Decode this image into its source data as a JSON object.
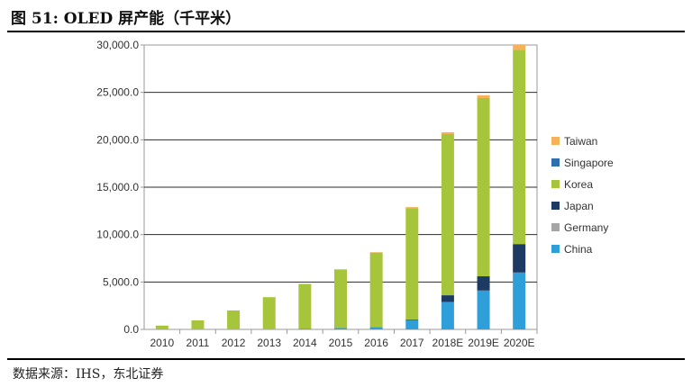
{
  "header": {
    "title": "图 51: OLED 屏产能（千平米）"
  },
  "footer": {
    "source": "数据来源：IHS，东北证券"
  },
  "colors": {
    "China": "#2e9fd8",
    "Germany": "#a6a6a6",
    "Japan": "#1d3a63",
    "Korea": "#a7c53a",
    "Singapore": "#2f6fb0",
    "Taiwan": "#f5b25a"
  },
  "chart_data": {
    "type": "bar",
    "stacked": true,
    "categories": [
      "2010",
      "2011",
      "2012",
      "2013",
      "2014",
      "2015",
      "2016",
      "2017",
      "2018E",
      "2019E",
      "2020E"
    ],
    "ylim": [
      0,
      30000
    ],
    "yticks": [
      "0.0",
      "5,000.0",
      "10,000.0",
      "15,000.0",
      "20,000.0",
      "25,000.0",
      "30,000.0"
    ],
    "grid": true,
    "legend_position": "right",
    "legend_order": [
      "Taiwan",
      "Singapore",
      "Korea",
      "Japan",
      "Germany",
      "China"
    ],
    "series": [
      {
        "name": "China",
        "values": [
          0,
          0,
          0,
          0,
          50,
          150,
          250,
          1000,
          2900,
          4100,
          6000
        ]
      },
      {
        "name": "Germany",
        "values": [
          0,
          0,
          0,
          0,
          0,
          0,
          0,
          0,
          0,
          0,
          0
        ]
      },
      {
        "name": "Japan",
        "values": [
          0,
          0,
          0,
          0,
          0,
          0,
          0,
          50,
          700,
          1500,
          3000
        ]
      },
      {
        "name": "Korea",
        "values": [
          400,
          950,
          2000,
          3400,
          4750,
          6150,
          7850,
          11750,
          17000,
          18800,
          20500
        ]
      },
      {
        "name": "Singapore",
        "values": [
          0,
          0,
          0,
          0,
          0,
          0,
          0,
          0,
          0,
          0,
          0
        ]
      },
      {
        "name": "Taiwan",
        "values": [
          0,
          0,
          0,
          0,
          0,
          50,
          50,
          100,
          200,
          300,
          500
        ]
      }
    ]
  }
}
